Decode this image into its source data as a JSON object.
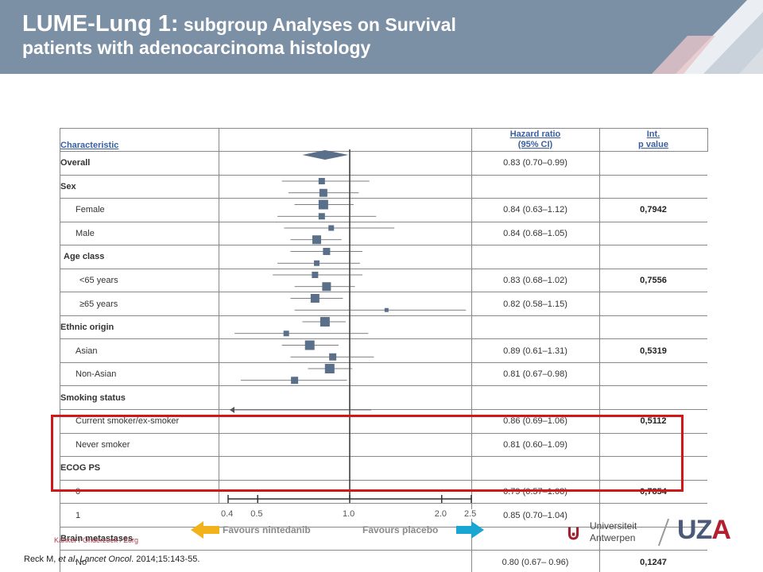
{
  "title": {
    "part1": "LUME-Lung 1:",
    "part2": " subgroup Analyses on Survival",
    "line2": "patients with adenocarcinoma histology"
  },
  "table": {
    "headers": {
      "characteristic": "Characteristic",
      "hr_line1": "Hazard ratio",
      "hr_line2": "(95% CI)",
      "p_line1": "Int.",
      "p_line2": "p value"
    },
    "rows": [
      {
        "label": "Overall",
        "hr": "0.83 (0.70–0.99)",
        "p": "",
        "style": "bold"
      },
      {
        "label": "Sex",
        "hr": "",
        "p": "",
        "style": "bold"
      },
      {
        "label": "Female",
        "hr": "0.84 (0.63–1.12)",
        "p": "0,7942",
        "style": "ind1"
      },
      {
        "label": "Male",
        "hr": "0.84 (0.68–1.05)",
        "p": "",
        "style": "ind1"
      },
      {
        "label": "Age class",
        "hr": "",
        "p": "",
        "style": "bold0"
      },
      {
        "label": "<65 years",
        "hr": "0.83 (0.68–1.02)",
        "p": "0,7556",
        "style": "ind2"
      },
      {
        "label": "≥65 years",
        "hr": "0.82 (0.58–1.15)",
        "p": "",
        "style": "ind2"
      },
      {
        "label": "Ethnic origin",
        "hr": "",
        "p": "",
        "style": "bold"
      },
      {
        "label": "Asian",
        "hr": "0.89 (0.61–1.31)",
        "p": "0,5319",
        "style": "ind1"
      },
      {
        "label": "Non-Asian",
        "hr": "0.81 (0.67–0.98)",
        "p": "",
        "style": "ind1"
      },
      {
        "label": "Smoking status",
        "hr": "",
        "p": "",
        "style": "bold"
      },
      {
        "label": "Current smoker/ex-smoker",
        "hr": "0.86 (0.69–1.06)",
        "p": "0,5112",
        "style": "ind1"
      },
      {
        "label": "Never smoker",
        "hr": "0.81 (0.60–1.09)",
        "p": "",
        "style": "ind1"
      },
      {
        "label": "ECOG  PS",
        "hr": "",
        "p": "",
        "style": "bold"
      },
      {
        "label": "0",
        "hr": "0.79 (0.57–1.08)",
        "p": "0,7854",
        "style": "ind1"
      },
      {
        "label": "1",
        "hr": "0.85 (0.70–1.04)",
        "p": "",
        "style": "ind1"
      },
      {
        "label": "Brain metastases",
        "hr": "",
        "p": "",
        "style": "bold"
      },
      {
        "label": "No",
        "hr": "0.80 (0.67– 0.96)",
        "p": "0,1247",
        "style": "ind1"
      }
    ]
  },
  "chart_data": {
    "type": "forest",
    "x_scale": "log",
    "x_ticks": [
      0.4,
      0.5,
      1.0,
      2.0,
      2.5
    ],
    "x_tick_labels": [
      "0.4",
      "0.5",
      "1.0",
      "2.0",
      "2.5"
    ],
    "xlim": [
      0.4,
      2.5
    ],
    "reference_line": 1.0,
    "left_label": "Favours nintedanib",
    "right_label": "Favours placebo",
    "left_arrow_color": "#f2b21b",
    "right_arrow_color": "#1aa6d2",
    "overall": {
      "hr": 0.83,
      "lo": 0.7,
      "hi": 0.99
    },
    "markers": [
      {
        "hr": 0.81,
        "lo": 0.6,
        "hi": 1.16,
        "size": 8
      },
      {
        "hr": 0.82,
        "lo": 0.63,
        "hi": 1.07,
        "size": 10
      },
      {
        "hr": 0.82,
        "lo": 0.66,
        "hi": 1.03,
        "size": 12
      },
      {
        "hr": 0.81,
        "lo": 0.58,
        "hi": 1.22,
        "size": 8
      },
      {
        "hr": 0.87,
        "lo": 0.61,
        "hi": 1.4,
        "size": 7
      },
      {
        "hr": 0.78,
        "lo": 0.64,
        "hi": 0.94,
        "size": 11
      },
      {
        "hr": 0.84,
        "lo": 0.64,
        "hi": 1.1,
        "size": 9
      },
      {
        "hr": 0.78,
        "lo": 0.58,
        "hi": 1.08,
        "size": 7
      },
      {
        "hr": 0.77,
        "lo": 0.56,
        "hi": 1.1,
        "size": 8
      },
      {
        "hr": 0.84,
        "lo": 0.66,
        "hi": 1.04,
        "size": 11
      },
      {
        "hr": 0.77,
        "lo": 0.64,
        "hi": 0.95,
        "size": 11
      },
      {
        "hr": 1.32,
        "lo": 0.66,
        "hi": 2.4,
        "size": 5
      },
      {
        "hr": 0.83,
        "lo": 0.7,
        "hi": 0.97,
        "size": 12
      },
      {
        "hr": 0.62,
        "lo": 0.42,
        "hi": 1.15,
        "size": 7
      },
      {
        "hr": 0.74,
        "lo": 0.6,
        "hi": 0.92,
        "size": 12
      },
      {
        "hr": 0.88,
        "lo": 0.64,
        "hi": 1.2,
        "size": 9
      },
      {
        "hr": 0.86,
        "lo": 0.73,
        "hi": 1.02,
        "size": 12
      },
      {
        "hr": 0.66,
        "lo": 0.44,
        "hi": 0.98,
        "size": 9
      }
    ]
  },
  "reference": {
    "authors": "Reck M, ",
    "etal": "et al",
    "journal": ". Lancet Oncol",
    "rest": ". 2014;15:143-55."
  },
  "footer_text": "Kanker / Onderzoek / Zorg",
  "logo_ua": {
    "line1": "Universiteit",
    "line2": "Antwerpen"
  },
  "logo_uza": {
    "u": "U",
    "z": "Z",
    "a": "A"
  },
  "colors": {
    "header": "#7b8fa5",
    "marker": "#5a6f8a",
    "highlight": "#d01818"
  }
}
